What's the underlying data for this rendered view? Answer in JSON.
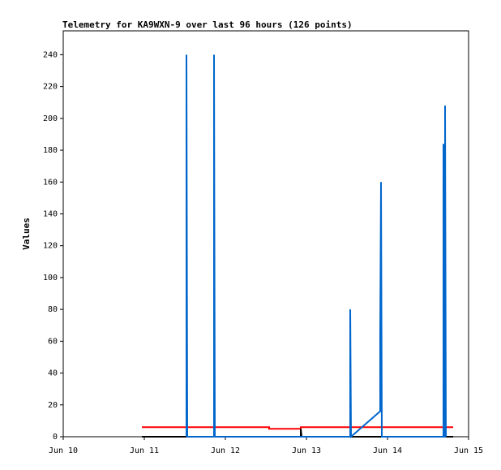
{
  "chart_data": {
    "type": "line",
    "title": "Telemetry for KA9WXN-9 over last 96 hours (126 points)",
    "y_label": "Values",
    "xlim": [
      0,
      5
    ],
    "xticks": [
      {
        "value": 0,
        "label": "Jun 10"
      },
      {
        "value": 1,
        "label": "Jun 11"
      },
      {
        "value": 2,
        "label": "Jun 12"
      },
      {
        "value": 3,
        "label": "Jun 13"
      },
      {
        "value": 4,
        "label": "Jun 14"
      },
      {
        "value": 5,
        "label": "Jun 15"
      }
    ],
    "ylim": [
      0,
      255
    ],
    "yticks": [
      0,
      20,
      40,
      60,
      80,
      100,
      120,
      140,
      160,
      180,
      200,
      220,
      240
    ],
    "series": [
      {
        "color": "#ff0000",
        "x": [
          0.97,
          2.54,
          2.54,
          2.93,
          2.93,
          4.81
        ],
        "values": [
          6,
          6,
          5,
          5,
          6,
          6
        ]
      },
      {
        "color": "#000000",
        "x": [
          0.97,
          2.93,
          2.93,
          2.94,
          4.81
        ],
        "values": [
          0,
          0,
          5,
          0,
          0
        ]
      },
      {
        "color": "#0066cc",
        "x": [
          1.52,
          1.52,
          1.53,
          1.86,
          1.86,
          1.87,
          3.54,
          3.54,
          3.55,
          3.91,
          3.91,
          3.92,
          3.93,
          4.69,
          4.69,
          4.7,
          4.71,
          4.71,
          4.72
        ],
        "values": [
          0,
          240,
          0,
          0,
          240,
          0,
          0,
          80,
          0,
          16,
          64,
          160,
          0,
          0,
          184,
          0,
          0,
          208,
          0
        ]
      }
    ]
  }
}
